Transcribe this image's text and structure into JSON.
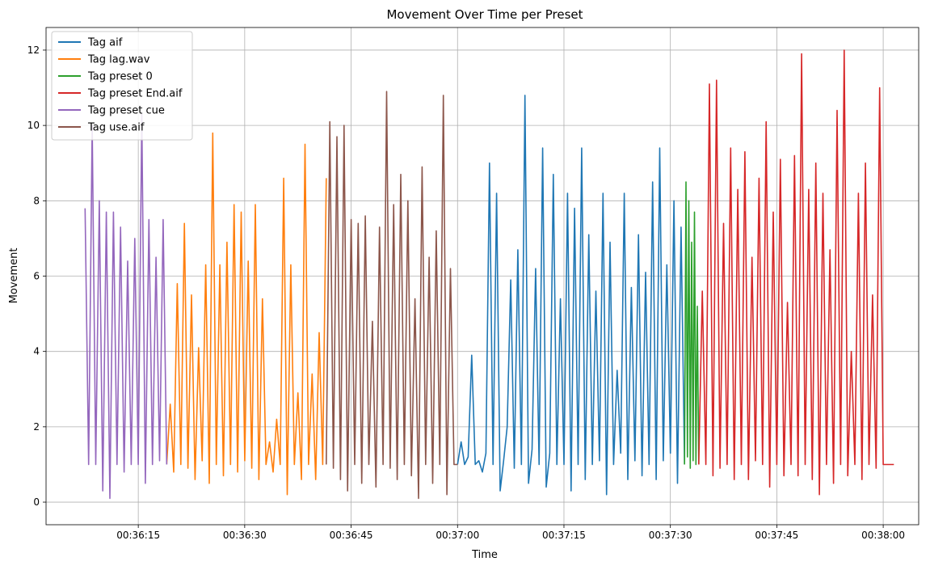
{
  "chart_data": {
    "type": "line",
    "title": "Movement Over Time per Preset",
    "xlabel": "Time",
    "ylabel": "Movement",
    "x_unit": "time (HH:MM:SS)",
    "xlim": [
      "00:36:02",
      "00:38:05"
    ],
    "ylim": [
      -0.6,
      12.6
    ],
    "x_ticks": [
      "00:36:15",
      "00:36:30",
      "00:36:45",
      "00:37:00",
      "00:37:15",
      "00:37:30",
      "00:37:45",
      "00:38:00"
    ],
    "y_ticks": [
      0,
      2,
      4,
      6,
      8,
      10,
      12
    ],
    "grid": true,
    "legend_position": "top-left",
    "series": [
      {
        "name": "Tag aif",
        "color": "#1f77b4",
        "x": [
          "00:37:00",
          "00:37:00.5",
          "00:37:01",
          "00:37:01.5",
          "00:37:02",
          "00:37:02.5",
          "00:37:03",
          "00:37:03.5",
          "00:37:04",
          "00:37:04.5",
          "00:37:05",
          "00:37:05.5",
          "00:37:06",
          "00:37:06.5",
          "00:37:07",
          "00:37:07.5",
          "00:37:08",
          "00:37:08.5",
          "00:37:09",
          "00:37:09.5",
          "00:37:10",
          "00:37:10.5",
          "00:37:11",
          "00:37:11.5",
          "00:37:12",
          "00:37:12.5",
          "00:37:13",
          "00:37:13.5",
          "00:37:14",
          "00:37:14.5",
          "00:37:15",
          "00:37:15.5",
          "00:37:16",
          "00:37:16.5",
          "00:37:17",
          "00:37:17.5",
          "00:37:18",
          "00:37:18.5",
          "00:37:19",
          "00:37:19.5",
          "00:37:20",
          "00:37:20.5",
          "00:37:21",
          "00:37:21.5",
          "00:37:22",
          "00:37:22.5",
          "00:37:23",
          "00:37:23.5",
          "00:37:24",
          "00:37:24.5",
          "00:37:25",
          "00:37:25.5",
          "00:37:26",
          "00:37:26.5",
          "00:37:27",
          "00:37:27.5",
          "00:37:28",
          "00:37:28.5",
          "00:37:29",
          "00:37:29.5",
          "00:37:30",
          "00:37:30.5",
          "00:37:31",
          "00:37:31.5",
          "00:37:32"
        ],
        "values": [
          1.0,
          1.6,
          1.0,
          1.2,
          3.9,
          1.0,
          1.1,
          0.8,
          1.3,
          9.0,
          1.0,
          8.2,
          0.3,
          1.1,
          2.0,
          5.9,
          0.9,
          6.7,
          1.0,
          10.8,
          0.5,
          1.4,
          6.2,
          1.0,
          9.4,
          0.4,
          1.3,
          8.7,
          1.0,
          5.4,
          1.0,
          8.2,
          0.3,
          7.8,
          1.0,
          9.4,
          0.6,
          7.1,
          1.0,
          5.6,
          1.1,
          8.2,
          0.2,
          6.9,
          1.0,
          3.5,
          1.3,
          8.2,
          0.6,
          5.7,
          1.1,
          7.1,
          0.7,
          6.1,
          1.0,
          8.5,
          0.6,
          9.4,
          1.1,
          6.3,
          1.3,
          8.0,
          0.5,
          7.3,
          1.0
        ]
      },
      {
        "name": "Tag lag.wav",
        "color": "#ff7f0e",
        "x": [
          "00:36:19",
          "00:36:19.5",
          "00:36:20",
          "00:36:20.5",
          "00:36:21",
          "00:36:21.5",
          "00:36:22",
          "00:36:22.5",
          "00:36:23",
          "00:36:23.5",
          "00:36:24",
          "00:36:24.5",
          "00:36:25",
          "00:36:25.5",
          "00:36:26",
          "00:36:26.5",
          "00:36:27",
          "00:36:27.5",
          "00:36:28",
          "00:36:28.5",
          "00:36:29",
          "00:36:29.5",
          "00:36:30",
          "00:36:30.5",
          "00:36:31",
          "00:36:31.5",
          "00:36:32",
          "00:36:32.5",
          "00:36:33",
          "00:36:33.5",
          "00:36:34",
          "00:36:34.5",
          "00:36:35",
          "00:36:35.5",
          "00:36:36",
          "00:36:36.5",
          "00:36:37",
          "00:36:37.5",
          "00:36:38",
          "00:36:38.5",
          "00:36:39",
          "00:36:39.5",
          "00:36:40",
          "00:36:40.5",
          "00:36:41",
          "00:36:41.5"
        ],
        "values": [
          1.0,
          2.6,
          0.8,
          5.8,
          1.0,
          7.4,
          0.9,
          5.5,
          0.6,
          4.1,
          1.1,
          6.3,
          0.5,
          9.8,
          1.0,
          6.3,
          0.7,
          6.9,
          1.0,
          7.9,
          0.8,
          7.7,
          1.1,
          6.4,
          0.9,
          7.9,
          0.6,
          5.4,
          1.0,
          1.6,
          0.8,
          2.2,
          1.0,
          8.6,
          0.2,
          6.3,
          1.0,
          2.9,
          0.6,
          9.5,
          1.0,
          3.4,
          0.6,
          4.5,
          1.0,
          8.6
        ]
      },
      {
        "name": "Tag preset 0",
        "color": "#2ca02c",
        "x": [
          "00:37:32",
          "00:37:32.2",
          "00:37:32.4",
          "00:37:32.6",
          "00:37:32.8",
          "00:37:33",
          "00:37:33.2",
          "00:37:33.4",
          "00:37:33.6",
          "00:37:33.8",
          "00:37:34"
        ],
        "values": [
          1.0,
          8.5,
          1.2,
          8.0,
          0.9,
          6.9,
          1.1,
          7.7,
          1.0,
          5.2,
          1.0
        ]
      },
      {
        "name": "Tag preset End.aif",
        "color": "#d62728",
        "x": [
          "00:37:34",
          "00:37:34.5",
          "00:37:35",
          "00:37:35.5",
          "00:37:36",
          "00:37:36.5",
          "00:37:37",
          "00:37:37.5",
          "00:37:38",
          "00:37:38.5",
          "00:37:39",
          "00:37:39.5",
          "00:37:40",
          "00:37:40.5",
          "00:37:41",
          "00:37:41.5",
          "00:37:42",
          "00:37:42.5",
          "00:37:43",
          "00:37:43.5",
          "00:37:44",
          "00:37:44.5",
          "00:37:45",
          "00:37:45.5",
          "00:37:46",
          "00:37:46.5",
          "00:37:47",
          "00:37:47.5",
          "00:37:48",
          "00:37:48.5",
          "00:37:49",
          "00:37:49.5",
          "00:37:50",
          "00:37:50.5",
          "00:37:51",
          "00:37:51.5",
          "00:37:52",
          "00:37:52.5",
          "00:37:53",
          "00:37:53.5",
          "00:37:54",
          "00:37:54.5",
          "00:37:55",
          "00:37:55.5",
          "00:37:56",
          "00:37:56.5",
          "00:37:57",
          "00:37:57.5",
          "00:37:58",
          "00:37:58.5",
          "00:37:59",
          "00:37:59.5",
          "00:38:00",
          "00:38:00.5",
          "00:38:01",
          "00:38:01.5"
        ],
        "values": [
          1.0,
          5.6,
          1.0,
          11.1,
          0.7,
          11.2,
          0.9,
          7.4,
          1.0,
          9.4,
          0.6,
          8.3,
          1.0,
          9.3,
          0.6,
          6.5,
          1.1,
          8.6,
          1.0,
          10.1,
          0.4,
          7.7,
          1.0,
          9.1,
          0.7,
          5.3,
          1.0,
          9.2,
          0.7,
          11.9,
          1.0,
          8.3,
          0.6,
          9.0,
          0.2,
          8.2,
          1.0,
          6.7,
          0.5,
          10.4,
          1.0,
          12.0,
          0.7,
          4.0,
          1.0,
          8.2,
          0.6,
          9.0,
          1.0,
          5.5,
          0.9,
          11.0,
          1.0,
          1.0,
          1.0,
          1.0
        ]
      },
      {
        "name": "Tag preset cue",
        "color": "#9467bd",
        "x": [
          "00:36:07.5",
          "00:36:08",
          "00:36:08.5",
          "00:36:09",
          "00:36:09.5",
          "00:36:10",
          "00:36:10.5",
          "00:36:11",
          "00:36:11.5",
          "00:36:12",
          "00:36:12.5",
          "00:36:13",
          "00:36:13.5",
          "00:36:14",
          "00:36:14.5",
          "00:36:15",
          "00:36:15.5",
          "00:36:16",
          "00:36:16.5",
          "00:36:17",
          "00:36:17.5",
          "00:36:18",
          "00:36:18.5",
          "00:36:19"
        ],
        "values": [
          7.8,
          1.0,
          10.0,
          1.0,
          8.0,
          0.3,
          7.7,
          0.1,
          7.7,
          1.0,
          7.3,
          0.8,
          6.4,
          1.0,
          7.0,
          1.0,
          10.3,
          0.5,
          7.5,
          1.0,
          6.5,
          1.1,
          7.5,
          1.0
        ]
      },
      {
        "name": "Tag use.aif",
        "color": "#8c564b",
        "x": [
          "00:36:41.5",
          "00:36:42",
          "00:36:42.5",
          "00:36:43",
          "00:36:43.5",
          "00:36:44",
          "00:36:44.5",
          "00:36:45",
          "00:36:45.5",
          "00:36:46",
          "00:36:46.5",
          "00:36:47",
          "00:36:47.5",
          "00:36:48",
          "00:36:48.5",
          "00:36:49",
          "00:36:49.5",
          "00:36:50",
          "00:36:50.5",
          "00:36:51",
          "00:36:51.5",
          "00:36:52",
          "00:36:52.5",
          "00:36:53",
          "00:36:53.5",
          "00:36:54",
          "00:36:54.5",
          "00:36:55",
          "00:36:55.5",
          "00:36:56",
          "00:36:56.5",
          "00:36:57",
          "00:36:57.5",
          "00:36:58",
          "00:36:58.5",
          "00:36:59",
          "00:36:59.5",
          "00:37:00"
        ],
        "values": [
          1.0,
          10.1,
          0.9,
          9.7,
          0.6,
          10.0,
          0.3,
          7.5,
          1.0,
          7.4,
          0.5,
          7.6,
          1.0,
          4.8,
          0.4,
          7.3,
          1.0,
          10.9,
          0.9,
          7.9,
          0.6,
          8.7,
          1.0,
          8.0,
          0.7,
          5.4,
          0.1,
          8.9,
          1.0,
          6.5,
          0.5,
          7.2,
          1.0,
          10.8,
          0.2,
          6.2,
          1.0,
          1.0
        ]
      }
    ]
  }
}
